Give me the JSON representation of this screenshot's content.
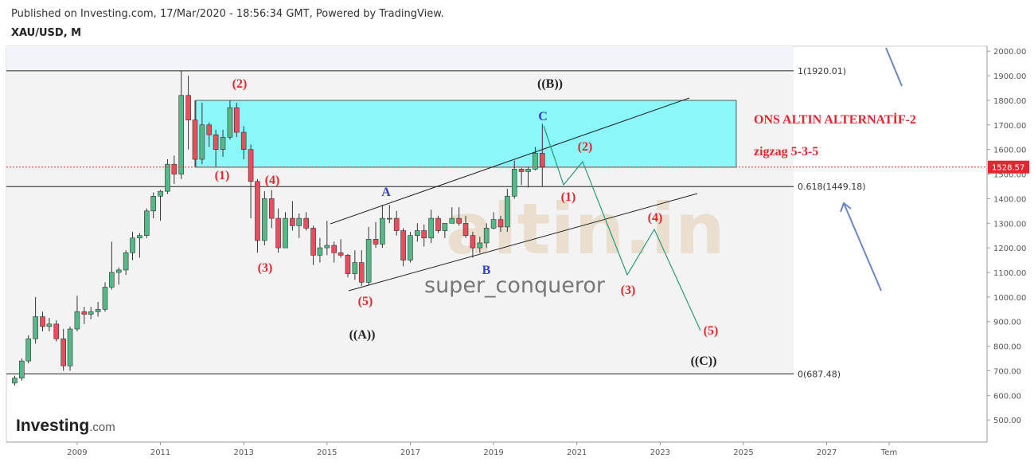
{
  "header": {
    "published": "Published on Investing.com, 17/Mar/2020 - 18:56:34 GMT, Powered by TradingView.",
    "symbol": "XAU/USD, M"
  },
  "logo": {
    "brand": "Investing",
    "suffix": ".com"
  },
  "watermark": {
    "site": "altin.in",
    "author": "super_conqueror"
  },
  "chart_data": {
    "type": "candlestick",
    "up_color": "#53b987",
    "down_color": "#eb4d5c",
    "xlim": [
      2007.3,
      2030.85
    ],
    "ylim": [
      410,
      2020
    ],
    "xticks": [
      2009,
      2011,
      2013,
      2015,
      2017,
      2019,
      2021,
      2023,
      2025,
      2027,
      {
        "value": 2028.5,
        "label": "Tem"
      }
    ],
    "yticks": [
      {
        "value": 500,
        "label": "500.00"
      },
      {
        "value": 600,
        "label": "600.00"
      },
      {
        "value": 700,
        "label": "700.00"
      },
      {
        "value": 800,
        "label": "800.00"
      },
      {
        "value": 900,
        "label": "900.00"
      },
      {
        "value": 1000,
        "label": "1000.00"
      },
      {
        "value": 1100,
        "label": "1100.00"
      },
      {
        "value": 1200,
        "label": "1200.00"
      },
      {
        "value": 1300,
        "label": "1300.00"
      },
      {
        "value": 1400,
        "label": "1400.00"
      },
      {
        "value": 1500,
        "label": "1500.00"
      },
      {
        "value": 1600,
        "label": "1600.00"
      },
      {
        "value": 1700,
        "label": "1700.00"
      },
      {
        "value": 1800,
        "label": "1800.00"
      },
      {
        "value": 1900,
        "label": "1900.00"
      },
      {
        "value": 2000,
        "label": "2000.00"
      }
    ],
    "x": [
      2007.5,
      2007.67,
      2007.83,
      2008.0,
      2008.17,
      2008.33,
      2008.5,
      2008.67,
      2008.83,
      2009.0,
      2009.17,
      2009.33,
      2009.5,
      2009.67,
      2009.83,
      2010.0,
      2010.17,
      2010.33,
      2010.5,
      2010.67,
      2010.83,
      2011.0,
      2011.17,
      2011.33,
      2011.5,
      2011.67,
      2011.83,
      2012.0,
      2012.17,
      2012.33,
      2012.5,
      2012.67,
      2012.83,
      2013.0,
      2013.17,
      2013.33,
      2013.5,
      2013.67,
      2013.83,
      2014.0,
      2014.17,
      2014.33,
      2014.5,
      2014.67,
      2014.83,
      2015.0,
      2015.17,
      2015.33,
      2015.5,
      2015.67,
      2015.83,
      2016.0,
      2016.17,
      2016.33,
      2016.5,
      2016.67,
      2016.83,
      2017.0,
      2017.17,
      2017.33,
      2017.5,
      2017.67,
      2017.83,
      2018.0,
      2018.17,
      2018.33,
      2018.5,
      2018.67,
      2018.83,
      2019.0,
      2019.17,
      2019.33,
      2019.5,
      2019.67,
      2019.83,
      2020.0,
      2020.17
    ],
    "series": [
      {
        "name": "XAU/USD",
        "values": [
          [
            650,
            680,
            640,
            670
          ],
          [
            670,
            750,
            660,
            740
          ],
          [
            740,
            845,
            730,
            830
          ],
          [
            830,
            1000,
            810,
            920
          ],
          [
            920,
            940,
            860,
            880
          ],
          [
            880,
            915,
            860,
            890
          ],
          [
            890,
            905,
            820,
            830
          ],
          [
            830,
            870,
            700,
            720
          ],
          [
            720,
            880,
            700,
            870
          ],
          [
            870,
            1005,
            860,
            940
          ],
          [
            940,
            960,
            890,
            930
          ],
          [
            930,
            960,
            910,
            940
          ],
          [
            940,
            980,
            920,
            950
          ],
          [
            950,
            1060,
            940,
            1040
          ],
          [
            1040,
            1225,
            1030,
            1100
          ],
          [
            1100,
            1120,
            1050,
            1110
          ],
          [
            1110,
            1190,
            1090,
            1180
          ],
          [
            1180,
            1265,
            1150,
            1240
          ],
          [
            1240,
            1260,
            1160,
            1250
          ],
          [
            1250,
            1360,
            1240,
            1350
          ],
          [
            1350,
            1425,
            1320,
            1410
          ],
          [
            1410,
            1435,
            1310,
            1430
          ],
          [
            1430,
            1560,
            1420,
            1540
          ],
          [
            1540,
            1575,
            1460,
            1500
          ],
          [
            1500,
            1920,
            1480,
            1820
          ],
          [
            1820,
            1900,
            1600,
            1720
          ],
          [
            1720,
            1800,
            1530,
            1560
          ],
          [
            1560,
            1790,
            1540,
            1700
          ],
          [
            1700,
            1710,
            1610,
            1660
          ],
          [
            1660,
            1680,
            1530,
            1600
          ],
          [
            1600,
            1680,
            1570,
            1650
          ],
          [
            1650,
            1800,
            1640,
            1770
          ],
          [
            1770,
            1790,
            1650,
            1670
          ],
          [
            1670,
            1695,
            1560,
            1600
          ],
          [
            1600,
            1620,
            1320,
            1470
          ],
          [
            1470,
            1480,
            1180,
            1230
          ],
          [
            1230,
            1430,
            1210,
            1400
          ],
          [
            1400,
            1435,
            1280,
            1320
          ],
          [
            1320,
            1360,
            1180,
            1200
          ],
          [
            1200,
            1345,
            1200,
            1320
          ],
          [
            1320,
            1390,
            1270,
            1290
          ],
          [
            1290,
            1340,
            1240,
            1320
          ],
          [
            1320,
            1345,
            1270,
            1280
          ],
          [
            1280,
            1290,
            1130,
            1170
          ],
          [
            1170,
            1240,
            1140,
            1200
          ],
          [
            1200,
            1310,
            1170,
            1210
          ],
          [
            1210,
            1225,
            1140,
            1180
          ],
          [
            1180,
            1235,
            1160,
            1170
          ],
          [
            1170,
            1175,
            1080,
            1095
          ],
          [
            1095,
            1190,
            1070,
            1140
          ],
          [
            1140,
            1190,
            1045,
            1060
          ],
          [
            1060,
            1285,
            1050,
            1235
          ],
          [
            1235,
            1305,
            1200,
            1215
          ],
          [
            1215,
            1375,
            1200,
            1320
          ],
          [
            1320,
            1375,
            1300,
            1320
          ],
          [
            1320,
            1350,
            1250,
            1270
          ],
          [
            1270,
            1280,
            1125,
            1150
          ],
          [
            1150,
            1265,
            1140,
            1250
          ],
          [
            1250,
            1300,
            1225,
            1270
          ],
          [
            1270,
            1295,
            1205,
            1240
          ],
          [
            1240,
            1355,
            1220,
            1320
          ],
          [
            1320,
            1330,
            1260,
            1270
          ],
          [
            1270,
            1300,
            1240,
            1300
          ],
          [
            1300,
            1365,
            1300,
            1320
          ],
          [
            1320,
            1365,
            1290,
            1300
          ],
          [
            1300,
            1330,
            1240,
            1250
          ],
          [
            1250,
            1265,
            1160,
            1200
          ],
          [
            1200,
            1245,
            1180,
            1220
          ],
          [
            1220,
            1300,
            1200,
            1280
          ],
          [
            1280,
            1345,
            1275,
            1315
          ],
          [
            1315,
            1330,
            1265,
            1285
          ],
          [
            1285,
            1440,
            1265,
            1410
          ],
          [
            1410,
            1555,
            1400,
            1520
          ],
          [
            1520,
            1525,
            1455,
            1510
          ],
          [
            1510,
            1530,
            1445,
            1520
          ],
          [
            1520,
            1610,
            1515,
            1585
          ],
          [
            1585,
            1705,
            1450,
            1530
          ]
        ]
      }
    ],
    "fib_levels": [
      {
        "value": 1920.01,
        "label": "1(1920.01)"
      },
      {
        "value": 1449.18,
        "label": "0.618(1449.18)"
      },
      {
        "value": 687.48,
        "label": "0(687.48)"
      }
    ],
    "last_price": 1528.57,
    "title": "ONS ALTIN ALTERNATİF-2",
    "subtitle": "zigzag 5-3-5",
    "annotations": [
      "(2)",
      "((B))",
      "C",
      "(1)",
      "(4)",
      "A",
      "(1)",
      "(2)",
      "(3)",
      "B",
      "(5)",
      "(4)",
      "(3)",
      "((A))",
      "(5)",
      "((C))"
    ]
  }
}
